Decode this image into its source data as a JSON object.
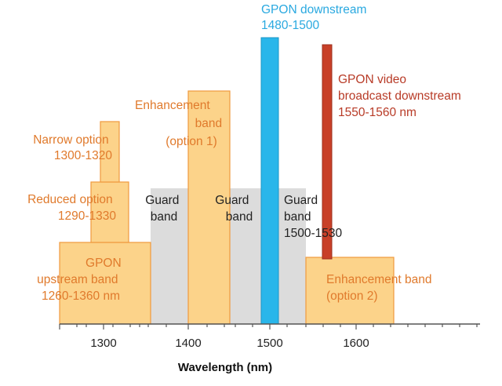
{
  "colors": {
    "orange_text": "#e07a2c",
    "orange_fill": "#fcd38a",
    "orange_stroke": "#f09a3e",
    "gray_fill": "#dcdcdc",
    "blue": "#29b6ea",
    "blue_text": "#2aa9e0",
    "red": "#c84028",
    "red_text": "#b83b27",
    "dark_text": "#222222"
  },
  "axis": {
    "title": "Wavelength (nm)",
    "ticks": [
      "1300",
      "1400",
      "1500",
      "1600"
    ]
  },
  "bands": {
    "narrow_option": {
      "line1": "Narrow option",
      "line2": "1300-1320"
    },
    "reduced_option": {
      "line1": "Reduced option",
      "line2": "1290-1330"
    },
    "upstream": {
      "line1": "GPON",
      "line2": "upstream band",
      "line3": "1260-1360 nm"
    },
    "guard1": {
      "line1": "Guard",
      "line2": "band"
    },
    "enhancement1": {
      "line1": "Enhancement",
      "line2": "band",
      "line3": "(option 1)"
    },
    "guard2": {
      "line1": "Guard",
      "line2": "band"
    },
    "downstream": {
      "line1": "GPON downstream",
      "line2": "1480-1500"
    },
    "guard3": {
      "line1": "Guard",
      "line2": "band",
      "line3": "1500-1530"
    },
    "video": {
      "line1": "GPON video",
      "line2": "broadcast downstream",
      "line3": "1550-1560 nm"
    },
    "enhancement2": {
      "line1": "Enhancement band",
      "line2": "(option 2)"
    }
  }
}
